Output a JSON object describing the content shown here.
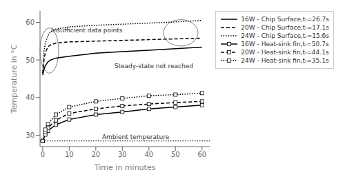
{
  "chart_data": {
    "type": "line",
    "x_label": "Time in minutes",
    "y_label": "Temperature in °C",
    "xlim": [
      -1,
      63
    ],
    "ylim": [
      27,
      63
    ],
    "xticks": [
      0,
      10,
      20,
      30,
      40,
      50,
      60
    ],
    "yticks": [
      30,
      40,
      50,
      60
    ],
    "grid": false,
    "legend": "right",
    "series": [
      {
        "name": "16W - Chip Surface,tᵣ=26.7s",
        "color": "black",
        "line_style": "solid",
        "marker": "none",
        "x": [
          0,
          0.5,
          1,
          2,
          3,
          5,
          10,
          20,
          30,
          40,
          50,
          60
        ],
        "values": [
          46.0,
          47.5,
          48.5,
          49.5,
          50.0,
          50.5,
          51.0,
          51.8,
          52.2,
          52.6,
          53.0,
          53.4
        ]
      },
      {
        "name": "20W - Chip Surface,tᵣ=17.1s",
        "color": "black",
        "line_style": "dashed",
        "marker": "none",
        "x": [
          0,
          0.5,
          1,
          2,
          3,
          5,
          10,
          20,
          30,
          40,
          50,
          60
        ],
        "values": [
          46.5,
          50.0,
          52.0,
          53.5,
          54.0,
          54.5,
          54.8,
          55.0,
          55.2,
          55.4,
          55.6,
          55.8
        ]
      },
      {
        "name": "24W - Chip Surface,tᵣ=15.6s",
        "color": "black",
        "line_style": "dotted",
        "marker": "none",
        "x": [
          0,
          0.5,
          1,
          2,
          3,
          5,
          10,
          20,
          30,
          40,
          50,
          60
        ],
        "values": [
          46.5,
          52.5,
          54.5,
          56.5,
          57.5,
          58.2,
          58.8,
          59.2,
          59.5,
          59.8,
          60.1,
          60.5
        ]
      },
      {
        "name": "16W - Heat-sink fin,tᵣ=50.7s",
        "color": "black",
        "line_style": "solid",
        "marker": "square",
        "x": [
          0,
          1,
          2,
          5,
          10,
          20,
          30,
          40,
          50,
          60
        ],
        "values": [
          28.5,
          30.2,
          31.2,
          32.8,
          34.2,
          35.5,
          36.2,
          37.0,
          37.5,
          38.0
        ]
      },
      {
        "name": "20W - Heat-sink fin,tᵣ=44.1s",
        "color": "black",
        "line_style": "dashed",
        "marker": "square",
        "x": [
          0,
          1,
          2,
          5,
          10,
          20,
          30,
          40,
          50,
          60
        ],
        "values": [
          28.5,
          30.8,
          32.0,
          34.0,
          35.8,
          37.0,
          37.8,
          38.3,
          38.7,
          39.0
        ]
      },
      {
        "name": "24W - Heat-sink fin,tᵣ=35.1s",
        "color": "black",
        "line_style": "dotted",
        "marker": "square",
        "x": [
          0,
          1,
          2,
          5,
          10,
          20,
          30,
          40,
          50,
          60
        ],
        "values": [
          28.5,
          31.5,
          33.0,
          35.5,
          37.5,
          39.0,
          39.8,
          40.5,
          40.8,
          41.2
        ]
      }
    ],
    "ambient": {
      "y": 28.5,
      "label": "Ambient temperature",
      "label_x": 35,
      "label_y": 29.0
    },
    "annotations": [
      {
        "text": "Insufficient data points",
        "x": 3.2,
        "y": 57.0
      },
      {
        "text": "Steady-state not reached",
        "x": 27,
        "y": 47.5
      }
    ],
    "ellipses": [
      {
        "x": 2.5,
        "y": 52.5,
        "width": 7.0,
        "height": 12.0
      },
      {
        "x": 52,
        "y": 57.2,
        "width": 13,
        "height": 7.0
      }
    ]
  }
}
